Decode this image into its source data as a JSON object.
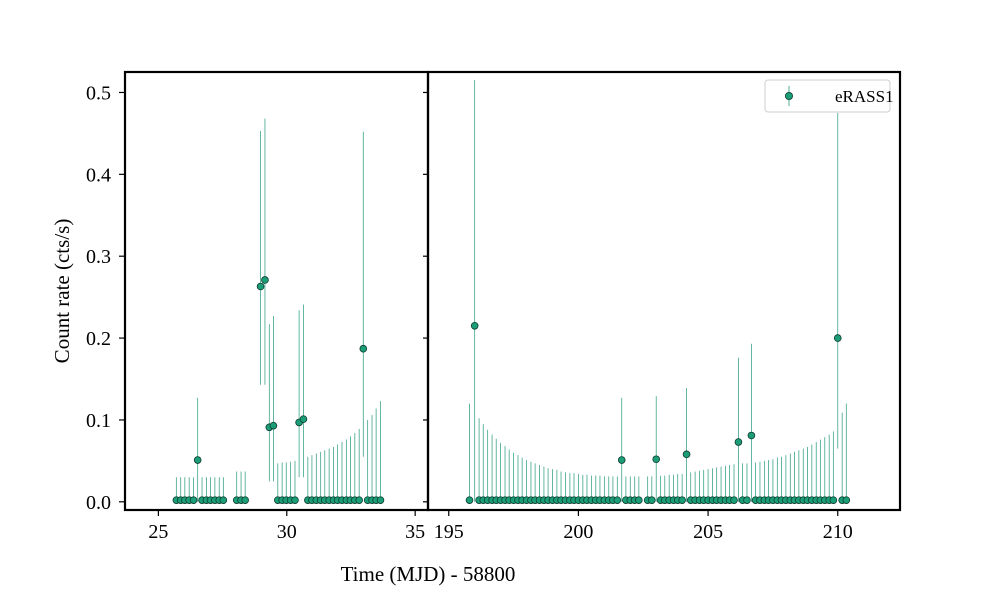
{
  "chart_data": {
    "type": "scatter",
    "xlabel": "Time (MJD) - 58800",
    "ylabel": "Count rate (cts/s)",
    "ylim": [
      -0.01,
      0.525
    ],
    "legend": {
      "entries": [
        "eRASS1"
      ],
      "placement": "top-right"
    },
    "series_color": "#1b9e77",
    "errorbar_color": "#3ca58a",
    "marker_edge_color": "#0d3b2e",
    "y_ticks": [
      0.0,
      0.1,
      0.2,
      0.3,
      0.4,
      0.5
    ],
    "y_tick_labels": [
      "0.0",
      "0.1",
      "0.2",
      "0.3",
      "0.4",
      "0.5"
    ],
    "panels": [
      {
        "xlim": [
          23.7,
          35.5
        ],
        "x_ticks": [
          25,
          30,
          35
        ],
        "x_tick_labels": [
          "25",
          "30",
          "35"
        ],
        "points": [
          {
            "x": 25.7,
            "y": 0.002,
            "err_hi": 0.03
          },
          {
            "x": 25.87,
            "y": 0.002,
            "err_hi": 0.03
          },
          {
            "x": 26.03,
            "y": 0.002,
            "err_hi": 0.03
          },
          {
            "x": 26.2,
            "y": 0.002,
            "err_hi": 0.03
          },
          {
            "x": 26.37,
            "y": 0.002,
            "err_hi": 0.03
          },
          {
            "x": 26.53,
            "y": 0.051,
            "err_hi": 0.127,
            "err_lo": 0.0
          },
          {
            "x": 26.7,
            "y": 0.002,
            "err_hi": 0.03
          },
          {
            "x": 26.87,
            "y": 0.002,
            "err_hi": 0.03
          },
          {
            "x": 27.03,
            "y": 0.002,
            "err_hi": 0.03
          },
          {
            "x": 27.2,
            "y": 0.002,
            "err_hi": 0.03
          },
          {
            "x": 27.37,
            "y": 0.002,
            "err_hi": 0.03
          },
          {
            "x": 27.53,
            "y": 0.002,
            "err_hi": 0.03
          },
          {
            "x": 28.05,
            "y": 0.002,
            "err_hi": 0.037
          },
          {
            "x": 28.22,
            "y": 0.002,
            "err_hi": 0.037
          },
          {
            "x": 28.38,
            "y": 0.002,
            "err_hi": 0.037
          },
          {
            "x": 28.98,
            "y": 0.263,
            "err_hi": 0.453,
            "err_lo": 0.143
          },
          {
            "x": 29.15,
            "y": 0.271,
            "err_hi": 0.468,
            "err_lo": 0.143
          },
          {
            "x": 29.32,
            "y": 0.091,
            "err_hi": 0.217,
            "err_lo": 0.025
          },
          {
            "x": 29.48,
            "y": 0.093,
            "err_hi": 0.227,
            "err_lo": 0.025
          },
          {
            "x": 29.65,
            "y": 0.002,
            "err_hi": 0.047
          },
          {
            "x": 29.82,
            "y": 0.002,
            "err_hi": 0.048
          },
          {
            "x": 29.98,
            "y": 0.002,
            "err_hi": 0.048
          },
          {
            "x": 30.15,
            "y": 0.002,
            "err_hi": 0.049
          },
          {
            "x": 30.32,
            "y": 0.002,
            "err_hi": 0.05
          },
          {
            "x": 30.48,
            "y": 0.097,
            "err_hi": 0.234,
            "err_lo": 0.03
          },
          {
            "x": 30.65,
            "y": 0.101,
            "err_hi": 0.241,
            "err_lo": 0.03
          },
          {
            "x": 30.82,
            "y": 0.002,
            "err_hi": 0.055
          },
          {
            "x": 30.98,
            "y": 0.002,
            "err_hi": 0.057
          },
          {
            "x": 31.15,
            "y": 0.002,
            "err_hi": 0.059
          },
          {
            "x": 31.32,
            "y": 0.002,
            "err_hi": 0.061
          },
          {
            "x": 31.48,
            "y": 0.002,
            "err_hi": 0.063
          },
          {
            "x": 31.65,
            "y": 0.002,
            "err_hi": 0.065
          },
          {
            "x": 31.82,
            "y": 0.002,
            "err_hi": 0.067
          },
          {
            "x": 31.98,
            "y": 0.002,
            "err_hi": 0.07
          },
          {
            "x": 32.15,
            "y": 0.002,
            "err_hi": 0.073
          },
          {
            "x": 32.32,
            "y": 0.002,
            "err_hi": 0.076
          },
          {
            "x": 32.48,
            "y": 0.002,
            "err_hi": 0.08
          },
          {
            "x": 32.65,
            "y": 0.002,
            "err_hi": 0.084
          },
          {
            "x": 32.82,
            "y": 0.002,
            "err_hi": 0.089
          },
          {
            "x": 32.98,
            "y": 0.187,
            "err_hi": 0.452,
            "err_lo": 0.055
          },
          {
            "x": 33.15,
            "y": 0.002,
            "err_hi": 0.1
          },
          {
            "x": 33.32,
            "y": 0.002,
            "err_hi": 0.106
          },
          {
            "x": 33.48,
            "y": 0.002,
            "err_hi": 0.114
          },
          {
            "x": 33.65,
            "y": 0.002,
            "err_hi": 0.123
          }
        ]
      },
      {
        "xlim": [
          194.2,
          212.4
        ],
        "x_ticks": [
          195,
          200,
          205,
          210
        ],
        "x_tick_labels": [
          "195",
          "200",
          "205",
          "210"
        ],
        "points": [
          {
            "x": 195.8,
            "y": 0.002,
            "err_hi": 0.12
          },
          {
            "x": 196.0,
            "y": 0.215,
            "err_hi": 0.515,
            "err_lo": 0.0
          },
          {
            "x": 196.17,
            "y": 0.002,
            "err_hi": 0.102
          },
          {
            "x": 196.33,
            "y": 0.002,
            "err_hi": 0.095
          },
          {
            "x": 196.5,
            "y": 0.002,
            "err_hi": 0.088
          },
          {
            "x": 196.67,
            "y": 0.002,
            "err_hi": 0.082
          },
          {
            "x": 196.83,
            "y": 0.002,
            "err_hi": 0.077
          },
          {
            "x": 197.0,
            "y": 0.002,
            "err_hi": 0.072
          },
          {
            "x": 197.17,
            "y": 0.002,
            "err_hi": 0.068
          },
          {
            "x": 197.33,
            "y": 0.002,
            "err_hi": 0.064
          },
          {
            "x": 197.5,
            "y": 0.002,
            "err_hi": 0.06
          },
          {
            "x": 197.67,
            "y": 0.002,
            "err_hi": 0.057
          },
          {
            "x": 197.83,
            "y": 0.002,
            "err_hi": 0.054
          },
          {
            "x": 198.0,
            "y": 0.002,
            "err_hi": 0.051
          },
          {
            "x": 198.17,
            "y": 0.002,
            "err_hi": 0.049
          },
          {
            "x": 198.33,
            "y": 0.002,
            "err_hi": 0.047
          },
          {
            "x": 198.5,
            "y": 0.002,
            "err_hi": 0.045
          },
          {
            "x": 198.67,
            "y": 0.002,
            "err_hi": 0.043
          },
          {
            "x": 198.83,
            "y": 0.002,
            "err_hi": 0.041
          },
          {
            "x": 199.0,
            "y": 0.002,
            "err_hi": 0.04
          },
          {
            "x": 199.17,
            "y": 0.002,
            "err_hi": 0.039
          },
          {
            "x": 199.33,
            "y": 0.002,
            "err_hi": 0.037
          },
          {
            "x": 199.5,
            "y": 0.002,
            "err_hi": 0.036
          },
          {
            "x": 199.67,
            "y": 0.002,
            "err_hi": 0.035
          },
          {
            "x": 199.83,
            "y": 0.002,
            "err_hi": 0.035
          },
          {
            "x": 200.0,
            "y": 0.002,
            "err_hi": 0.034
          },
          {
            "x": 200.17,
            "y": 0.002,
            "err_hi": 0.033
          },
          {
            "x": 200.33,
            "y": 0.002,
            "err_hi": 0.033
          },
          {
            "x": 200.5,
            "y": 0.002,
            "err_hi": 0.032
          },
          {
            "x": 200.67,
            "y": 0.002,
            "err_hi": 0.032
          },
          {
            "x": 200.83,
            "y": 0.002,
            "err_hi": 0.032
          },
          {
            "x": 201.0,
            "y": 0.002,
            "err_hi": 0.031
          },
          {
            "x": 201.17,
            "y": 0.002,
            "err_hi": 0.031
          },
          {
            "x": 201.33,
            "y": 0.002,
            "err_hi": 0.031
          },
          {
            "x": 201.5,
            "y": 0.002,
            "err_hi": 0.031
          },
          {
            "x": 201.67,
            "y": 0.051,
            "err_hi": 0.127,
            "err_lo": 0.0
          },
          {
            "x": 201.83,
            "y": 0.002,
            "err_hi": 0.031
          },
          {
            "x": 202.0,
            "y": 0.002,
            "err_hi": 0.031
          },
          {
            "x": 202.17,
            "y": 0.002,
            "err_hi": 0.031
          },
          {
            "x": 202.33,
            "y": 0.002,
            "err_hi": 0.031
          },
          {
            "x": 202.67,
            "y": 0.002,
            "err_hi": 0.031
          },
          {
            "x": 202.83,
            "y": 0.002,
            "err_hi": 0.031
          },
          {
            "x": 203.0,
            "y": 0.052,
            "err_hi": 0.129,
            "err_lo": 0.0
          },
          {
            "x": 203.17,
            "y": 0.002,
            "err_hi": 0.032
          },
          {
            "x": 203.33,
            "y": 0.002,
            "err_hi": 0.032
          },
          {
            "x": 203.5,
            "y": 0.002,
            "err_hi": 0.033
          },
          {
            "x": 203.67,
            "y": 0.002,
            "err_hi": 0.033
          },
          {
            "x": 203.83,
            "y": 0.002,
            "err_hi": 0.034
          },
          {
            "x": 204.0,
            "y": 0.002,
            "err_hi": 0.034
          },
          {
            "x": 204.17,
            "y": 0.058,
            "err_hi": 0.139,
            "err_lo": 0.0
          },
          {
            "x": 204.33,
            "y": 0.002,
            "err_hi": 0.036
          },
          {
            "x": 204.5,
            "y": 0.002,
            "err_hi": 0.037
          },
          {
            "x": 204.67,
            "y": 0.002,
            "err_hi": 0.038
          },
          {
            "x": 204.83,
            "y": 0.002,
            "err_hi": 0.039
          },
          {
            "x": 205.0,
            "y": 0.002,
            "err_hi": 0.04
          },
          {
            "x": 205.17,
            "y": 0.002,
            "err_hi": 0.041
          },
          {
            "x": 205.33,
            "y": 0.002,
            "err_hi": 0.042
          },
          {
            "x": 205.5,
            "y": 0.002,
            "err_hi": 0.043
          },
          {
            "x": 205.67,
            "y": 0.002,
            "err_hi": 0.044
          },
          {
            "x": 205.83,
            "y": 0.002,
            "err_hi": 0.045
          },
          {
            "x": 206.0,
            "y": 0.002,
            "err_hi": 0.046
          },
          {
            "x": 206.17,
            "y": 0.073,
            "err_hi": 0.176,
            "err_lo": 0.0
          },
          {
            "x": 206.33,
            "y": 0.002,
            "err_hi": 0.047
          },
          {
            "x": 206.5,
            "y": 0.002,
            "err_hi": 0.047
          },
          {
            "x": 206.67,
            "y": 0.081,
            "err_hi": 0.193,
            "err_lo": 0.0
          },
          {
            "x": 206.83,
            "y": 0.002,
            "err_hi": 0.048
          },
          {
            "x": 207.0,
            "y": 0.002,
            "err_hi": 0.049
          },
          {
            "x": 207.17,
            "y": 0.002,
            "err_hi": 0.05
          },
          {
            "x": 207.33,
            "y": 0.002,
            "err_hi": 0.051
          },
          {
            "x": 207.5,
            "y": 0.002,
            "err_hi": 0.052
          },
          {
            "x": 207.67,
            "y": 0.002,
            "err_hi": 0.054
          },
          {
            "x": 207.83,
            "y": 0.002,
            "err_hi": 0.055
          },
          {
            "x": 208.0,
            "y": 0.002,
            "err_hi": 0.057
          },
          {
            "x": 208.17,
            "y": 0.002,
            "err_hi": 0.059
          },
          {
            "x": 208.33,
            "y": 0.002,
            "err_hi": 0.061
          },
          {
            "x": 208.5,
            "y": 0.002,
            "err_hi": 0.063
          },
          {
            "x": 208.67,
            "y": 0.002,
            "err_hi": 0.065
          },
          {
            "x": 208.83,
            "y": 0.002,
            "err_hi": 0.067
          },
          {
            "x": 209.0,
            "y": 0.002,
            "err_hi": 0.07
          },
          {
            "x": 209.17,
            "y": 0.002,
            "err_hi": 0.073
          },
          {
            "x": 209.33,
            "y": 0.002,
            "err_hi": 0.076
          },
          {
            "x": 209.5,
            "y": 0.002,
            "err_hi": 0.079
          },
          {
            "x": 209.67,
            "y": 0.002,
            "err_hi": 0.082
          },
          {
            "x": 209.83,
            "y": 0.002,
            "err_hi": 0.086
          },
          {
            "x": 210.0,
            "y": 0.2,
            "err_hi": 0.475,
            "err_lo": 0.065
          },
          {
            "x": 210.17,
            "y": 0.002,
            "err_hi": 0.109
          },
          {
            "x": 210.33,
            "y": 0.002,
            "err_hi": 0.12
          }
        ]
      }
    ]
  }
}
